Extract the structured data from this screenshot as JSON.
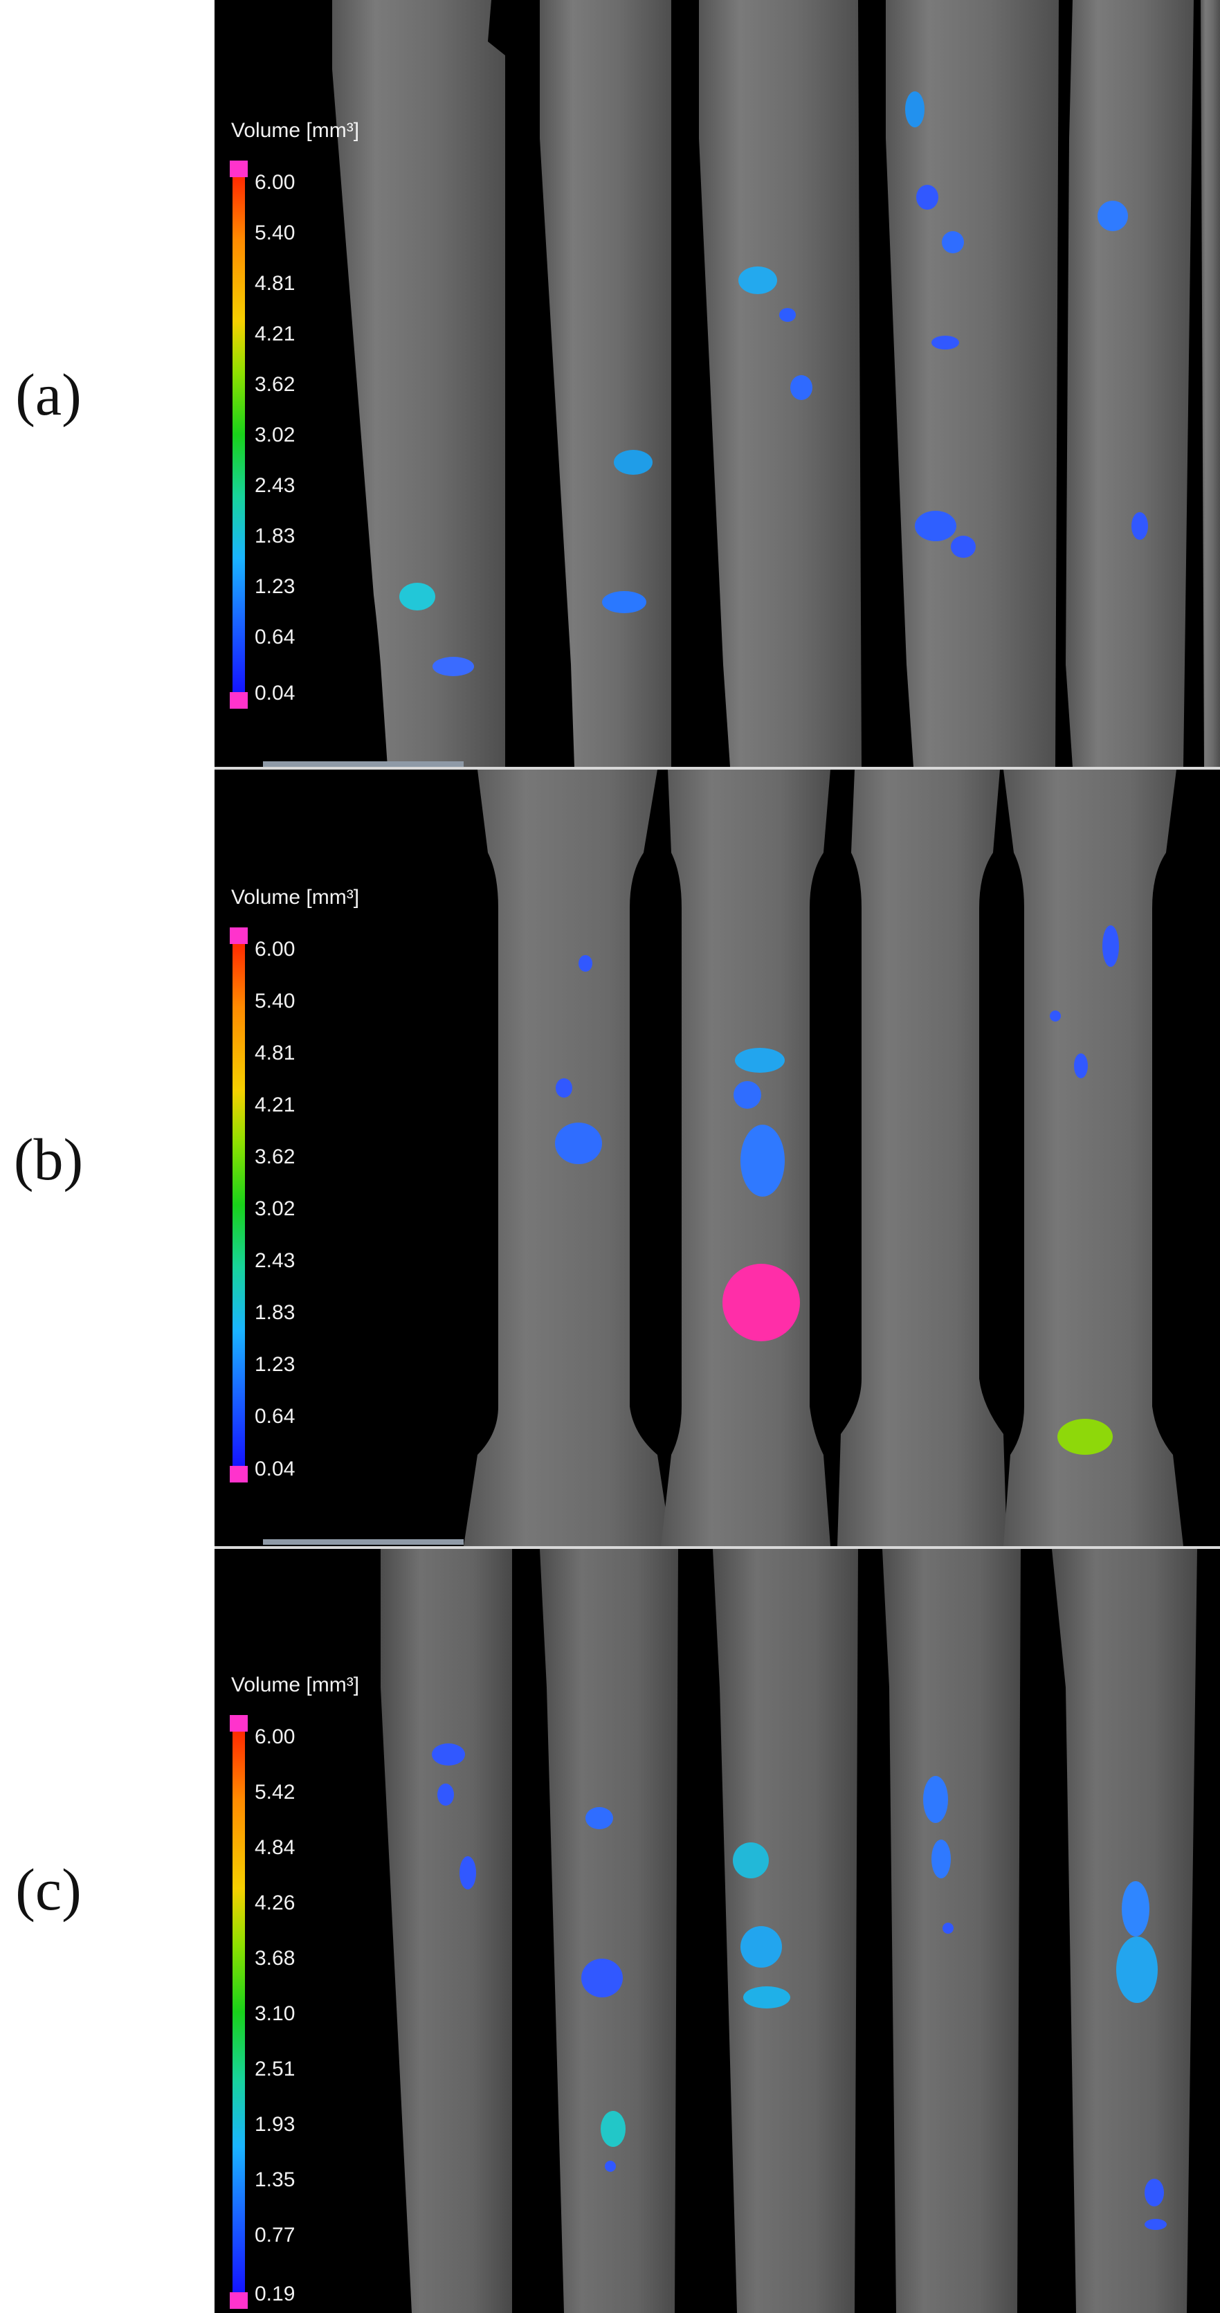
{
  "panels": [
    {
      "label": "(a)",
      "legend_title": "Volume [mm³]",
      "ticks": [
        "6.00",
        "5.40",
        "4.81",
        "4.21",
        "3.62",
        "3.02",
        "2.43",
        "1.83",
        "1.23",
        "0.64",
        "0.04"
      ]
    },
    {
      "label": "(b)",
      "legend_title": "Volume [mm³]",
      "ticks": [
        "6.00",
        "5.40",
        "4.81",
        "4.21",
        "3.62",
        "3.02",
        "2.43",
        "1.83",
        "1.23",
        "0.64",
        "0.04"
      ]
    },
    {
      "label": "(c)",
      "legend_title": "Volume [mm³]",
      "ticks": [
        "6.00",
        "5.42",
        "4.84",
        "4.26",
        "3.68",
        "3.10",
        "2.51",
        "1.93",
        "1.35",
        "0.77",
        "0.19"
      ]
    }
  ],
  "colors": {
    "background": "#000000",
    "specimen": "#6e6e6e",
    "cap_magenta": "#ff33cc"
  }
}
